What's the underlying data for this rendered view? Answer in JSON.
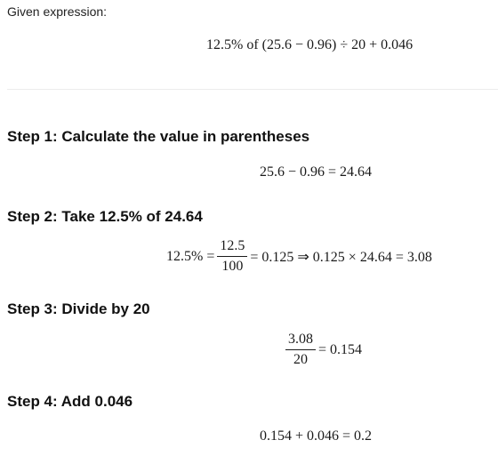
{
  "intro": {
    "label": "Given expression:",
    "expression": "12.5% of (25.6 − 0.96) ÷ 20 + 0.046"
  },
  "steps": [
    {
      "title": "Step 1: Calculate the value in parentheses",
      "equation": "25.6 − 0.96 = 24.64"
    },
    {
      "title": "Step 2: Take 12.5% of 24.64",
      "lhs": "12.5% =",
      "frac_num": "12.5",
      "frac_den": "100",
      "rhs": "= 0.125 ⇒ 0.125 × 24.64 = 3.08"
    },
    {
      "title": "Step 3: Divide by 20",
      "frac_num": "3.08",
      "frac_den": "20",
      "rhs": "= 0.154"
    },
    {
      "title": "Step 4: Add 0.046",
      "equation": "0.154 + 0.046 = 0.2"
    }
  ]
}
